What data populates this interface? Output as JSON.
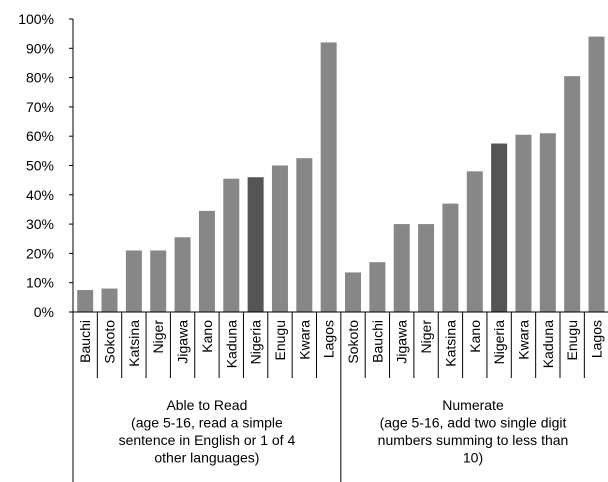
{
  "chart_data": {
    "type": "bar",
    "title": "",
    "xlabel": "",
    "ylabel": "",
    "ylim": [
      0,
      100
    ],
    "y_ticks": [
      "0%",
      "10%",
      "20%",
      "30%",
      "40%",
      "50%",
      "60%",
      "70%",
      "80%",
      "90%",
      "100%"
    ],
    "grid": false,
    "colors": {
      "bar": "#878787",
      "highlight": "#555555"
    },
    "highlight_category": "Nigeria",
    "groups": [
      {
        "label_lines": [
          "Able to Read",
          "(age 5-16, read a simple",
          "sentence in English  or 1 of 4",
          "other languages)"
        ],
        "categories": [
          "Bauchi",
          "Sokoto",
          "Katsina",
          "Niger",
          "Jigawa",
          "Kano",
          "Kaduna",
          "Nigeria",
          "Enugu",
          "Kwara",
          "Lagos"
        ],
        "values": [
          7.5,
          8,
          21,
          21,
          25.5,
          34.5,
          45.5,
          46,
          50,
          52.5,
          92
        ]
      },
      {
        "label_lines": [
          "Numerate",
          "(age 5-16,  add two single digit",
          "numbers summing to less than",
          "10)"
        ],
        "categories": [
          "Sokoto",
          "Bauchi",
          "Jigawa",
          "Niger",
          "Katsina",
          "Kano",
          "Nigeria",
          "Kwara",
          "Kaduna",
          "Enugu",
          "Lagos"
        ],
        "values": [
          13.5,
          17,
          30,
          30,
          37,
          48,
          57.5,
          60.5,
          61,
          80.5,
          94
        ]
      }
    ]
  }
}
